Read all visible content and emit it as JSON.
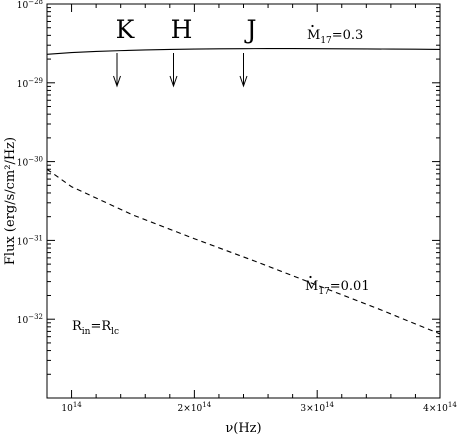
{
  "chart_data": {
    "type": "line",
    "xlabel": "ν(Hz)",
    "ylabel": "Flux (erg/s/cm²/Hz)",
    "x_scale": "linear",
    "y_scale": "log",
    "xlim": [
      80000000000000.0,
      400000000000000.0
    ],
    "ylim": [
      1e-33,
      1e-28
    ],
    "x_ticks": [
      {
        "value": 100000000000000.0,
        "mantissa": "10",
        "exp": "14"
      },
      {
        "value": 200000000000000.0,
        "mantissa": "2×10",
        "exp": "14"
      },
      {
        "value": 300000000000000.0,
        "mantissa": "3×10",
        "exp": "14"
      },
      {
        "value": 400000000000000.0,
        "mantissa": "4×10",
        "exp": "14"
      }
    ],
    "y_ticks": [
      {
        "value": 1e-28,
        "mantissa": "10",
        "exp": "−28"
      },
      {
        "value": 1e-29,
        "mantissa": "10",
        "exp": "−29"
      },
      {
        "value": 1e-30,
        "mantissa": "10",
        "exp": "−30"
      },
      {
        "value": 1e-31,
        "mantissa": "10",
        "exp": "−31"
      },
      {
        "value": 1e-32,
        "mantissa": "10",
        "exp": "−32"
      }
    ],
    "series": [
      {
        "style": "solid",
        "color": "#000000",
        "label": {
          "prefix": "M",
          "sub": "17",
          "suffix": "=0.3"
        },
        "x": [
          80000000000000.0,
          100000000000000.0,
          120000000000000.0,
          140000000000000.0,
          160000000000000.0,
          180000000000000.0,
          200000000000000.0,
          220000000000000.0,
          240000000000000.0,
          260000000000000.0,
          280000000000000.0,
          300000000000000.0,
          320000000000000.0,
          340000000000000.0,
          360000000000000.0,
          380000000000000.0,
          400000000000000.0
        ],
        "y": [
          2.3e-29,
          2.42e-29,
          2.5e-29,
          2.56e-29,
          2.61e-29,
          2.65e-29,
          2.68e-29,
          2.7e-29,
          2.71e-29,
          2.72e-29,
          2.72e-29,
          2.71e-29,
          2.7e-29,
          2.69e-29,
          2.68e-29,
          2.67e-29,
          2.65e-29
        ]
      },
      {
        "style": "dashed",
        "color": "#000000",
        "label": {
          "prefix": "M",
          "sub": "17",
          "suffix": "=0.01"
        },
        "x": [
          80000000000000.0,
          100000000000000.0,
          150000000000000.0,
          200000000000000.0,
          250000000000000.0,
          300000000000000.0,
          350000000000000.0,
          400000000000000.0
        ],
        "y": [
          8e-31,
          4.8e-31,
          2.1e-31,
          1.05e-31,
          5.4e-32,
          2.7e-32,
          1.35e-32,
          6.5e-33
        ]
      }
    ],
    "bands": [
      {
        "label": "K",
        "x": 137000000000000.0
      },
      {
        "label": "H",
        "x": 183000000000000.0
      },
      {
        "label": "J",
        "x": 240000000000000.0
      }
    ],
    "annotation": {
      "prefix": "R",
      "sub1": "in",
      "mid": "=R",
      "sub2": "lc"
    }
  }
}
